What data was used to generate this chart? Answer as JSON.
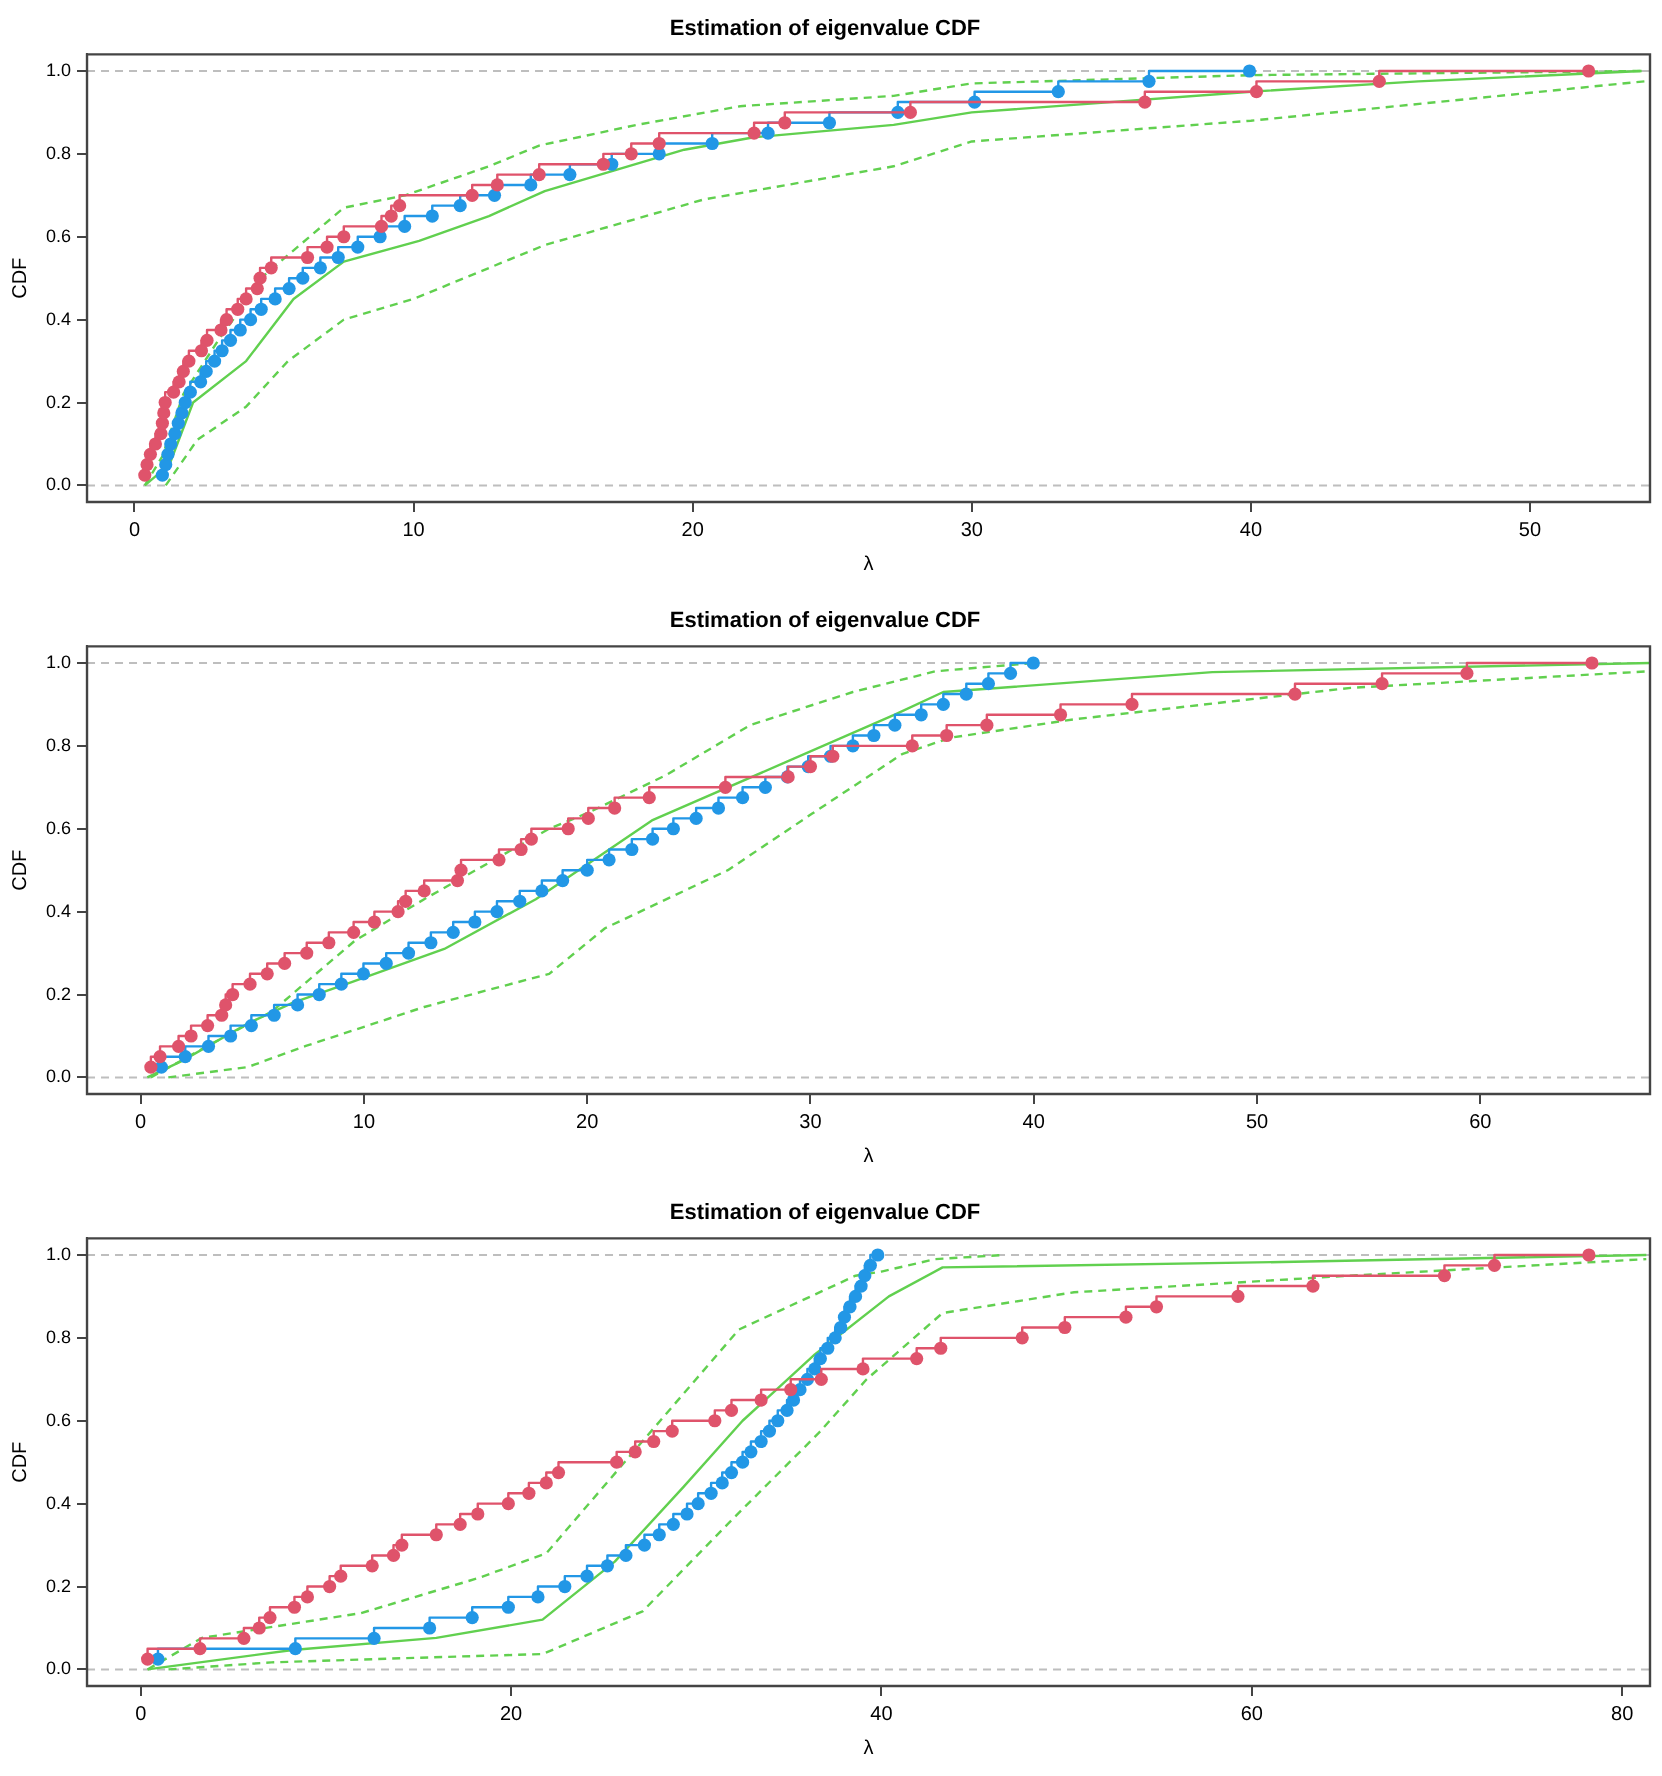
{
  "chart_data": [
    {
      "type": "step",
      "title": "Estimation of eigenvalue CDF",
      "xlabel": "λ",
      "ylabel": "CDF",
      "xlim": [
        -1.7,
        54.3
      ],
      "ylim": [
        -0.04,
        1.04
      ],
      "xticks": [
        0,
        10,
        20,
        30,
        40,
        50
      ],
      "yticks": [
        {
          "value": 0,
          "label": "0.0"
        },
        {
          "value": 0.2,
          "label": "0.2"
        },
        {
          "value": 0.4,
          "label": "0.4"
        },
        {
          "value": 0.6,
          "label": "0.6"
        },
        {
          "value": 0.8,
          "label": "0.8"
        },
        {
          "value": 1,
          "label": "1.0"
        }
      ],
      "grid": false,
      "marker": "circle",
      "ref_lines": [
        {
          "axis": "y",
          "value": 0,
          "color": "#bebebe",
          "line_style": "dashed"
        },
        {
          "axis": "y",
          "value": 1,
          "color": "#bebebe",
          "line_style": "dashed"
        }
      ],
      "series": [
        {
          "type": "step",
          "color": "#df536b",
          "x": [
            0.37,
            0.45,
            0.57,
            0.75,
            0.95,
            1.0,
            1.05,
            1.1,
            1.4,
            1.6,
            1.75,
            1.95,
            2.4,
            2.6,
            3.1,
            3.3,
            3.7,
            4.0,
            4.4,
            4.5,
            4.9,
            6.2,
            6.9,
            7.5,
            8.85,
            9.2,
            9.5,
            12.1,
            13.0,
            14.5,
            16.8,
            17.8,
            18.8,
            22.2,
            23.3,
            27.8,
            36.2,
            40.2,
            44.6,
            52.1
          ],
          "values": [
            0.025,
            0.05,
            0.075,
            0.1,
            0.125,
            0.15,
            0.175,
            0.2,
            0.225,
            0.25,
            0.275,
            0.3,
            0.325,
            0.35,
            0.375,
            0.4,
            0.425,
            0.45,
            0.475,
            0.5,
            0.525,
            0.55,
            0.575,
            0.6,
            0.625,
            0.65,
            0.675,
            0.7,
            0.725,
            0.75,
            0.775,
            0.8,
            0.825,
            0.85,
            0.875,
            0.9,
            0.925,
            0.95,
            0.975,
            1
          ]
        },
        {
          "type": "step",
          "color": "#2297e6",
          "x": [
            1.0,
            1.12,
            1.2,
            1.3,
            1.45,
            1.57,
            1.7,
            1.82,
            2.0,
            2.37,
            2.57,
            2.87,
            3.14,
            3.44,
            3.79,
            4.16,
            4.54,
            5.04,
            5.54,
            6.03,
            6.66,
            7.3,
            8.0,
            8.8,
            9.68,
            10.67,
            11.67,
            12.9,
            14.2,
            15.6,
            17.1,
            18.8,
            20.7,
            22.7,
            24.9,
            27.35,
            30.1,
            33.1,
            36.35,
            39.95
          ],
          "values": [
            0.025,
            0.05,
            0.075,
            0.1,
            0.125,
            0.15,
            0.175,
            0.2,
            0.225,
            0.25,
            0.275,
            0.3,
            0.325,
            0.35,
            0.375,
            0.4,
            0.425,
            0.45,
            0.475,
            0.5,
            0.525,
            0.55,
            0.575,
            0.6,
            0.625,
            0.65,
            0.675,
            0.7,
            0.725,
            0.75,
            0.775,
            0.8,
            0.825,
            0.85,
            0.875,
            0.9,
            0.925,
            0.95,
            0.975,
            1
          ]
        },
        {
          "type": "line",
          "marker": "none",
          "color": "#61d04f",
          "x": [
            0.37,
            1.25,
            2.1,
            4.0,
            5.7,
            7.5,
            10.2,
            12.7,
            14.7,
            17.2,
            19.7,
            22.2,
            27.2,
            30,
            40,
            46,
            54
          ],
          "values": [
            0,
            0.05,
            0.2,
            0.3,
            0.45,
            0.54,
            0.59,
            0.65,
            0.71,
            0.76,
            0.81,
            0.84,
            0.87,
            0.9,
            0.95,
            0.975,
            1
          ]
        },
        {
          "type": "line",
          "marker": "none",
          "line_style": "dashed",
          "color": "#61d04f",
          "x": [
            0.37,
            1.0,
            1.75,
            3.0,
            4.7,
            7.5,
            9.7,
            12.7,
            14.5,
            18,
            21.7,
            27.2,
            30,
            40,
            54
          ],
          "values": [
            0,
            0.07,
            0.22,
            0.35,
            0.51,
            0.67,
            0.7,
            0.77,
            0.82,
            0.87,
            0.915,
            0.94,
            0.97,
            0.99,
            1
          ]
        },
        {
          "type": "line",
          "marker": "none",
          "line_style": "dashed",
          "color": "#61d04f",
          "x": [
            1.12,
            2.25,
            4,
            5.5,
            7.5,
            10,
            14.7,
            20.4,
            27.2,
            30,
            40,
            54.1
          ],
          "values": [
            0,
            0.11,
            0.19,
            0.3,
            0.4,
            0.45,
            0.58,
            0.69,
            0.77,
            0.83,
            0.88,
            0.975
          ]
        }
      ]
    },
    {
      "type": "step",
      "title": "Estimation of eigenvalue CDF",
      "xlabel": "λ",
      "ylabel": "CDF",
      "xlim": [
        -2.4,
        67.6
      ],
      "ylim": [
        -0.04,
        1.04
      ],
      "xticks": [
        0,
        10,
        20,
        30,
        40,
        50,
        60
      ],
      "yticks": [
        {
          "value": 0,
          "label": "0.0"
        },
        {
          "value": 0.2,
          "label": "0.2"
        },
        {
          "value": 0.4,
          "label": "0.4"
        },
        {
          "value": 0.6,
          "label": "0.6"
        },
        {
          "value": 0.8,
          "label": "0.8"
        },
        {
          "value": 1,
          "label": "1.0"
        }
      ],
      "grid": false,
      "marker": "circle",
      "ref_lines": [
        {
          "axis": "y",
          "value": 0,
          "color": "#bebebe",
          "line_style": "dashed"
        },
        {
          "axis": "y",
          "value": 1,
          "color": "#bebebe",
          "line_style": "dashed"
        }
      ],
      "series": [
        {
          "type": "step",
          "color": "#df536b",
          "x": [
            0.46,
            0.87,
            1.7,
            2.26,
            3.0,
            3.63,
            3.81,
            4.12,
            4.9,
            5.67,
            6.45,
            7.44,
            8.43,
            9.54,
            10.47,
            11.53,
            11.87,
            12.7,
            14.19,
            14.35,
            16.05,
            17.04,
            17.5,
            19.15,
            20.05,
            21.23,
            22.78,
            26.19,
            29.0,
            30.0,
            31.0,
            34.56,
            36.1,
            37.9,
            41.2,
            44.4,
            51.7,
            55.6,
            59.4,
            65.0
          ],
          "values": [
            0.025,
            0.05,
            0.075,
            0.1,
            0.125,
            0.15,
            0.175,
            0.2,
            0.225,
            0.25,
            0.275,
            0.3,
            0.325,
            0.35,
            0.375,
            0.4,
            0.425,
            0.45,
            0.475,
            0.5,
            0.525,
            0.55,
            0.575,
            0.6,
            0.625,
            0.65,
            0.675,
            0.7,
            0.725,
            0.75,
            0.775,
            0.8,
            0.825,
            0.85,
            0.875,
            0.9,
            0.925,
            0.95,
            0.975,
            1
          ]
        },
        {
          "type": "step",
          "color": "#2297e6",
          "x": [
            0.93,
            2.0,
            3.04,
            4.03,
            4.96,
            5.98,
            7.03,
            8.0,
            8.99,
            9.98,
            11.0,
            12.0,
            13.0,
            14.0,
            14.97,
            15.96,
            16.98,
            17.97,
            18.9,
            20.0,
            20.98,
            22.0,
            22.93,
            23.86,
            24.88,
            25.88,
            26.96,
            27.98,
            28.97,
            29.9,
            30.9,
            31.9,
            32.84,
            33.78,
            34.96,
            35.95,
            36.98,
            37.97,
            38.96,
            39.98
          ],
          "values": [
            0.025,
            0.05,
            0.075,
            0.1,
            0.125,
            0.15,
            0.175,
            0.2,
            0.225,
            0.25,
            0.275,
            0.3,
            0.325,
            0.35,
            0.375,
            0.4,
            0.425,
            0.45,
            0.475,
            0.5,
            0.525,
            0.55,
            0.575,
            0.6,
            0.625,
            0.65,
            0.675,
            0.7,
            0.725,
            0.75,
            0.775,
            0.8,
            0.825,
            0.85,
            0.875,
            0.9,
            0.925,
            0.95,
            0.975,
            1
          ]
        },
        {
          "type": "line",
          "marker": "none",
          "color": "#61d04f",
          "x": [
            0.3,
            1.86,
            4.8,
            6.8,
            9.45,
            13.6,
            17.7,
            22.9,
            33.8,
            35.95,
            48,
            67.6
          ],
          "values": [
            0,
            0.04,
            0.13,
            0.18,
            0.23,
            0.31,
            0.43,
            0.62,
            0.876,
            0.93,
            0.978,
            1
          ]
        },
        {
          "type": "line",
          "marker": "none",
          "line_style": "dashed",
          "color": "#61d04f",
          "x": [
            0.46,
            2.8,
            5.9,
            9.6,
            12.7,
            18.3,
            20.1,
            23.55,
            27.3,
            31.9,
            35.6,
            40
          ],
          "values": [
            0,
            0.07,
            0.16,
            0.33,
            0.43,
            0.6,
            0.64,
            0.73,
            0.85,
            0.93,
            0.98,
            1
          ]
        },
        {
          "type": "line",
          "marker": "none",
          "line_style": "dashed",
          "color": "#61d04f",
          "x": [
            1.24,
            4.8,
            7.4,
            12.7,
            18.3,
            20.8,
            26.3,
            30.06,
            34.1,
            36.3,
            41.8,
            54.2,
            67.6
          ],
          "values": [
            0,
            0.025,
            0.076,
            0.17,
            0.25,
            0.36,
            0.5,
            0.636,
            0.78,
            0.82,
            0.864,
            0.94,
            0.98
          ]
        }
      ]
    },
    {
      "type": "step",
      "title": "Estimation of eigenvalue CDF",
      "xlabel": "λ",
      "ylabel": "CDF",
      "xlim": [
        -2.9,
        81.5
      ],
      "ylim": [
        -0.04,
        1.04
      ],
      "xticks": [
        0,
        20,
        40,
        60,
        80
      ],
      "yticks": [
        {
          "value": 0,
          "label": "0.0"
        },
        {
          "value": 0.2,
          "label": "0.2"
        },
        {
          "value": 0.4,
          "label": "0.4"
        },
        {
          "value": 0.6,
          "label": "0.6"
        },
        {
          "value": 0.8,
          "label": "0.8"
        },
        {
          "value": 1,
          "label": "1.0"
        }
      ],
      "grid": false,
      "marker": "circle",
      "ref_lines": [
        {
          "axis": "y",
          "value": 0,
          "color": "#bebebe",
          "line_style": "dashed"
        },
        {
          "axis": "y",
          "value": 1,
          "color": "#bebebe",
          "line_style": "dashed"
        }
      ],
      "series": [
        {
          "type": "step",
          "color": "#df536b",
          "x": [
            0.37,
            3.2,
            5.57,
            6.4,
            6.98,
            8.3,
            9.0,
            10.2,
            10.8,
            12.5,
            13.65,
            14.1,
            15.96,
            17.25,
            18.2,
            19.85,
            20.96,
            21.9,
            22.56,
            25.7,
            26.7,
            27.7,
            28.7,
            31.0,
            31.9,
            33.5,
            35.1,
            36.75,
            39.0,
            41.9,
            43.2,
            47.6,
            49.9,
            53.2,
            54.85,
            59.25,
            63.3,
            70.4,
            73.1,
            78.2
          ],
          "values": [
            0.025,
            0.05,
            0.075,
            0.1,
            0.125,
            0.15,
            0.175,
            0.2,
            0.225,
            0.25,
            0.275,
            0.3,
            0.325,
            0.35,
            0.375,
            0.4,
            0.425,
            0.45,
            0.475,
            0.5,
            0.525,
            0.55,
            0.575,
            0.6,
            0.625,
            0.65,
            0.675,
            0.7,
            0.725,
            0.75,
            0.775,
            0.8,
            0.825,
            0.85,
            0.875,
            0.9,
            0.925,
            0.95,
            0.975,
            1
          ]
        },
        {
          "type": "step",
          "color": "#2297e6",
          "x": [
            0.93,
            8.35,
            12.6,
            15.6,
            17.9,
            19.85,
            21.45,
            22.9,
            24.1,
            25.2,
            26.2,
            27.2,
            28.0,
            28.76,
            29.5,
            30.1,
            30.8,
            31.4,
            31.9,
            32.5,
            32.95,
            33.5,
            33.95,
            34.4,
            34.9,
            35.25,
            35.6,
            36.0,
            36.4,
            36.7,
            37.1,
            37.5,
            37.8,
            38.0,
            38.3,
            38.6,
            38.9,
            39.1,
            39.4,
            39.8
          ],
          "values": [
            0.025,
            0.05,
            0.075,
            0.1,
            0.125,
            0.15,
            0.175,
            0.2,
            0.225,
            0.25,
            0.275,
            0.3,
            0.325,
            0.35,
            0.375,
            0.4,
            0.425,
            0.45,
            0.475,
            0.5,
            0.525,
            0.55,
            0.575,
            0.6,
            0.625,
            0.65,
            0.675,
            0.7,
            0.725,
            0.75,
            0.775,
            0.8,
            0.825,
            0.85,
            0.875,
            0.9,
            0.925,
            0.95,
            0.975,
            1
          ]
        },
        {
          "type": "line",
          "marker": "none",
          "color": "#61d04f",
          "x": [
            0.37,
            8.2,
            15.96,
            21.7,
            25.6,
            29.3,
            32.5,
            36.4,
            40.4,
            43.3,
            61.6,
            81.3
          ],
          "values": [
            0,
            0.047,
            0.076,
            0.12,
            0.26,
            0.44,
            0.6,
            0.76,
            0.9,
            0.97,
            0.983,
            1
          ]
        },
        {
          "type": "line",
          "marker": "none",
          "line_style": "dashed",
          "color": "#61d04f",
          "x": [
            0.37,
            3.3,
            11.9,
            18.2,
            21.9,
            26.7,
            32.3,
            38.6,
            40,
            42.9,
            46.6
          ],
          "values": [
            0,
            0.076,
            0.136,
            0.22,
            0.28,
            0.53,
            0.82,
            0.95,
            0.96,
            0.99,
            1
          ]
        },
        {
          "type": "line",
          "marker": "none",
          "line_style": "dashed",
          "color": "#61d04f",
          "x": [
            1.5,
            7.05,
            16.3,
            21.7,
            27.1,
            31.9,
            36.6,
            39.2,
            43.3,
            50.4,
            65.3,
            81.3
          ],
          "values": [
            0,
            0.017,
            0.03,
            0.037,
            0.14,
            0.36,
            0.57,
            0.7,
            0.86,
            0.91,
            0.95,
            0.99
          ]
        }
      ]
    }
  ]
}
